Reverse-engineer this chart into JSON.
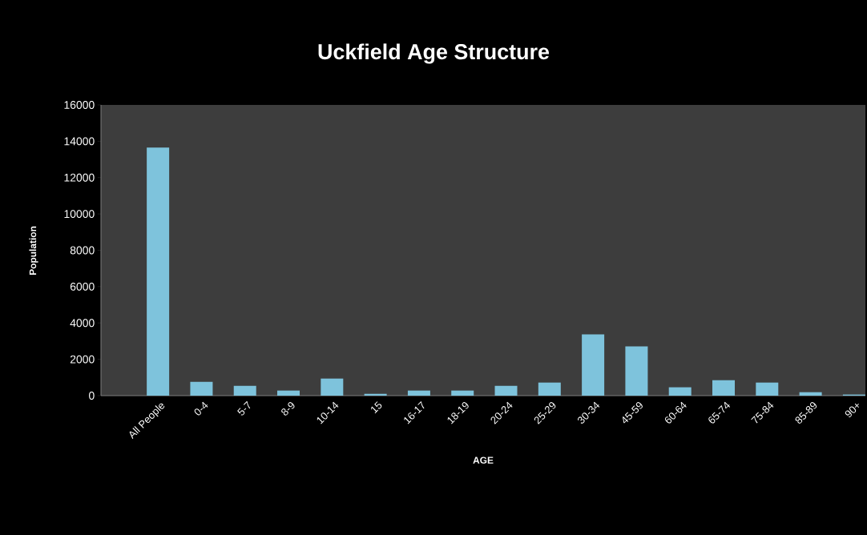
{
  "chart_data": {
    "type": "bar",
    "title": "Uckfield Age Structure",
    "xlabel": "AGE",
    "ylabel": "Population",
    "categories": [
      "All People",
      "0-4",
      "5-7",
      "8-9",
      "10-14",
      "15",
      "16-17",
      "18-19",
      "20-24",
      "25-29",
      "30-34",
      "45-59",
      "60-64",
      "65-74",
      "75-84",
      "85-89",
      "90+"
    ],
    "values": [
      13650,
      760,
      540,
      280,
      940,
      100,
      280,
      280,
      540,
      720,
      3370,
      2710,
      460,
      850,
      720,
      190,
      60
    ],
    "color": "#7ec3dc",
    "ylim": [
      0,
      16000
    ],
    "yticks": [
      0,
      2000,
      4000,
      6000,
      8000,
      10000,
      12000,
      14000,
      16000
    ],
    "grid": false
  }
}
